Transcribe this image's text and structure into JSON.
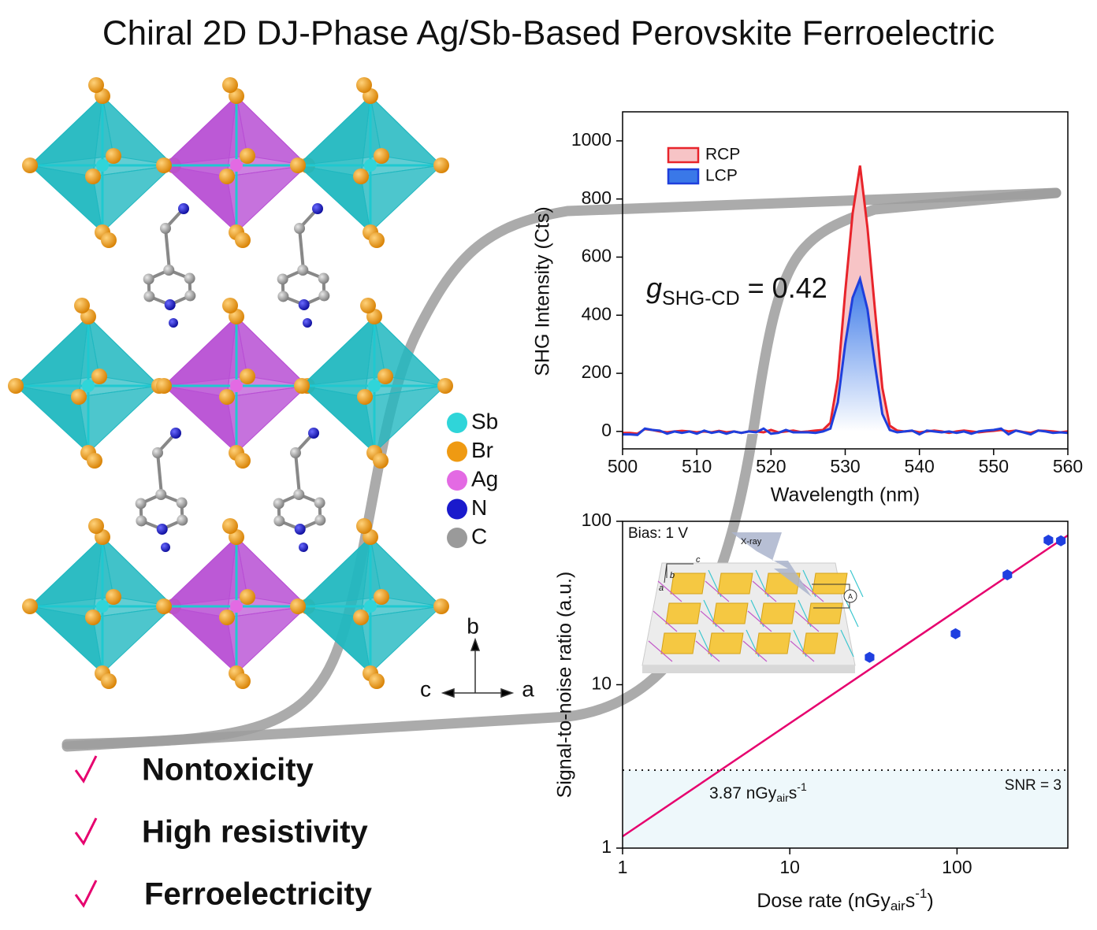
{
  "title": "Chiral 2D DJ-Phase Ag/Sb-Based Perovskite Ferroelectric",
  "crystal_legend": [
    {
      "label": "Sb",
      "color": "#2fd5d9"
    },
    {
      "label": "Br",
      "color": "#ef9a12"
    },
    {
      "label": "Ag",
      "color": "#e36ae3"
    },
    {
      "label": "N",
      "color": "#1a1acc"
    },
    {
      "label": "C",
      "color": "#9a9a9a"
    }
  ],
  "crystal_axes": {
    "up": "b",
    "left": "c",
    "right": "a"
  },
  "features": [
    "Nontoxicity",
    "High resistivity",
    "Ferroelectricity"
  ],
  "feature_color": "#e6006e",
  "chart_data": [
    {
      "type": "line",
      "x_label": "Wavelength (nm)",
      "y_label": "SHG Intensity (Cts)",
      "x": [
        500,
        501,
        502,
        503,
        504,
        505,
        506,
        507,
        508,
        509,
        510,
        511,
        512,
        513,
        514,
        515,
        516,
        517,
        518,
        519,
        520,
        521,
        522,
        523,
        524,
        525,
        526,
        527,
        528,
        529,
        530,
        531,
        532,
        533,
        534,
        535,
        536,
        537,
        538,
        539,
        540,
        541,
        542,
        543,
        544,
        545,
        546,
        547,
        548,
        549,
        550,
        551,
        552,
        553,
        554,
        555,
        556,
        557,
        558,
        559,
        560
      ],
      "series": [
        {
          "name": "RCP",
          "color": "#e8242b",
          "values": [
            -5,
            -5,
            -8,
            8,
            5,
            0,
            -3,
            0,
            2,
            0,
            -3,
            0,
            -3,
            2,
            -3,
            0,
            -5,
            0,
            0,
            -3,
            5,
            -3,
            0,
            3,
            -2,
            0,
            3,
            5,
            30,
            180,
            480,
            750,
            915,
            700,
            420,
            150,
            20,
            3,
            0,
            2,
            -3,
            0,
            3,
            0,
            -5,
            0,
            3,
            0,
            -3,
            0,
            2,
            5,
            0,
            3,
            -2,
            -5,
            3,
            2,
            0,
            -3,
            0
          ]
        },
        {
          "name": "LCP",
          "color": "#1f3fdc",
          "values": [
            -10,
            -10,
            -12,
            10,
            5,
            3,
            -8,
            0,
            -5,
            0,
            -8,
            3,
            -5,
            0,
            -8,
            0,
            -5,
            0,
            -3,
            10,
            -8,
            -5,
            5,
            -3,
            -3,
            -3,
            -5,
            0,
            10,
            100,
            300,
            460,
            525,
            420,
            230,
            60,
            5,
            -3,
            0,
            3,
            -10,
            3,
            0,
            -3,
            0,
            -5,
            0,
            -8,
            0,
            3,
            5,
            10,
            -10,
            3,
            -3,
            -10,
            3,
            0,
            -5,
            -3,
            -5
          ]
        }
      ],
      "xlim": [
        500,
        560
      ],
      "ylim": [
        -60,
        1100
      ],
      "xticks": [
        500,
        510,
        520,
        530,
        540,
        550,
        560
      ],
      "yticks": [
        0,
        200,
        400,
        600,
        800,
        1000
      ],
      "legend": "upper left",
      "annotation": {
        "symbol": "g",
        "subscript": "SHG-CD",
        "text": "= 0.42"
      }
    },
    {
      "type": "scatter",
      "x_label": {
        "text": "Dose rate (nGy",
        "sub": "air",
        "mid": "s",
        "sup": "-1",
        "end": ")"
      },
      "y_label": "Signal-to-noise ratio (a.u.)",
      "x": [
        30,
        98,
        200,
        352,
        418
      ],
      "values": [
        14.7,
        20.5,
        47,
        76.6,
        76
      ],
      "color": "#1f3fe0",
      "xscale": "log",
      "yscale": "log",
      "xlim": [
        1,
        460
      ],
      "ylim": [
        1,
        100
      ],
      "xticks": [
        1,
        10,
        100
      ],
      "yticks": [
        1,
        10,
        100
      ],
      "fit": {
        "x": [
          1,
          460
        ],
        "values": [
          1.18,
          82
        ],
        "color": "#e6006e"
      },
      "threshold": {
        "value": 3,
        "label": "SNR = 3"
      },
      "detection_limit": {
        "text": "3.87 nGy",
        "sub": "air",
        "mid": "s",
        "sup": "-1"
      },
      "note": "Bias: 1 V",
      "inset_labels": {
        "source": "X-ray",
        "axis_c": "c",
        "axis_b": "b",
        "axis_a": "a",
        "meter": "A"
      }
    }
  ]
}
